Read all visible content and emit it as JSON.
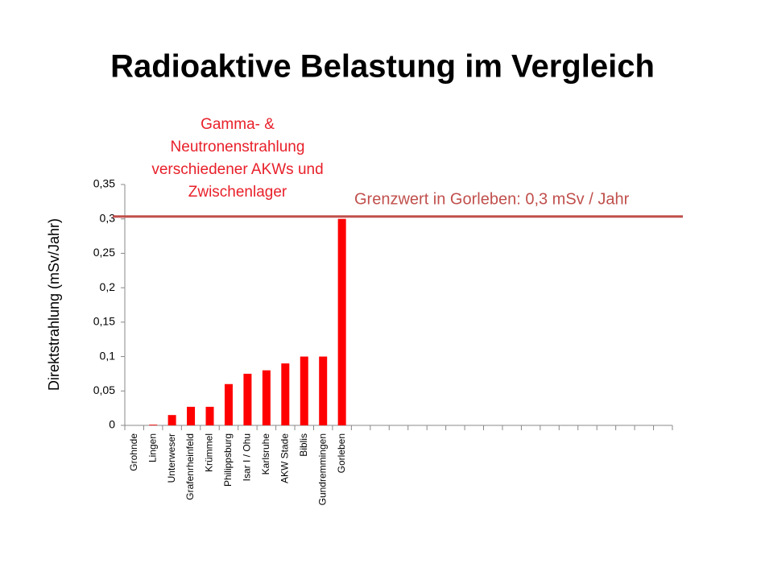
{
  "chart_data": {
    "type": "bar",
    "title": "Radioaktive Belastung im Vergleich",
    "annotation_lines": [
      "Gamma- &",
      "Neutronenstrahlung",
      "verschiedener AKWs und",
      "Zwischenlager"
    ],
    "y_label": "Direktstrahlung (mSv/Jahr)",
    "reference_line": {
      "value": 0.3,
      "label": "Grenzwert in Gorleben: 0,3 mSv / Jahr",
      "color": "#c0504d"
    },
    "categories": [
      "Grohnde",
      "Lingen",
      "Unterweser",
      "Grafenrheinfeld",
      "Krümmel",
      "Philippsburg",
      "Isar I / Ohu",
      "Karlsruhe",
      "AKW Stade",
      "Biblis",
      "Gundremmingen",
      "Gorleben",
      null,
      null,
      null,
      null,
      null,
      null,
      null,
      null,
      null,
      null,
      null,
      null,
      null,
      null,
      null,
      null,
      null
    ],
    "values": [
      0,
      0.001,
      0.015,
      0.027,
      0.027,
      0.06,
      0.075,
      0.08,
      0.09,
      0.1,
      0.1,
      0.3,
      null,
      null,
      null,
      null,
      null,
      null,
      null,
      null,
      null,
      null,
      null,
      null,
      null,
      null,
      null,
      null,
      null
    ],
    "color": "#ff0000",
    "ylim": [
      0,
      0.35
    ],
    "yticks": [
      0,
      {
        "value": 0.05,
        "label": "0,05"
      },
      {
        "value": 0.1,
        "label": "0,1"
      },
      {
        "value": 0.15,
        "label": "0,15"
      },
      {
        "value": 0.2,
        "label": "0,2"
      },
      {
        "value": 0.25,
        "label": "0,25"
      },
      {
        "value": 0.3,
        "label": "0,3"
      },
      {
        "value": 0.35,
        "label": "0,35"
      }
    ],
    "grid": false
  }
}
